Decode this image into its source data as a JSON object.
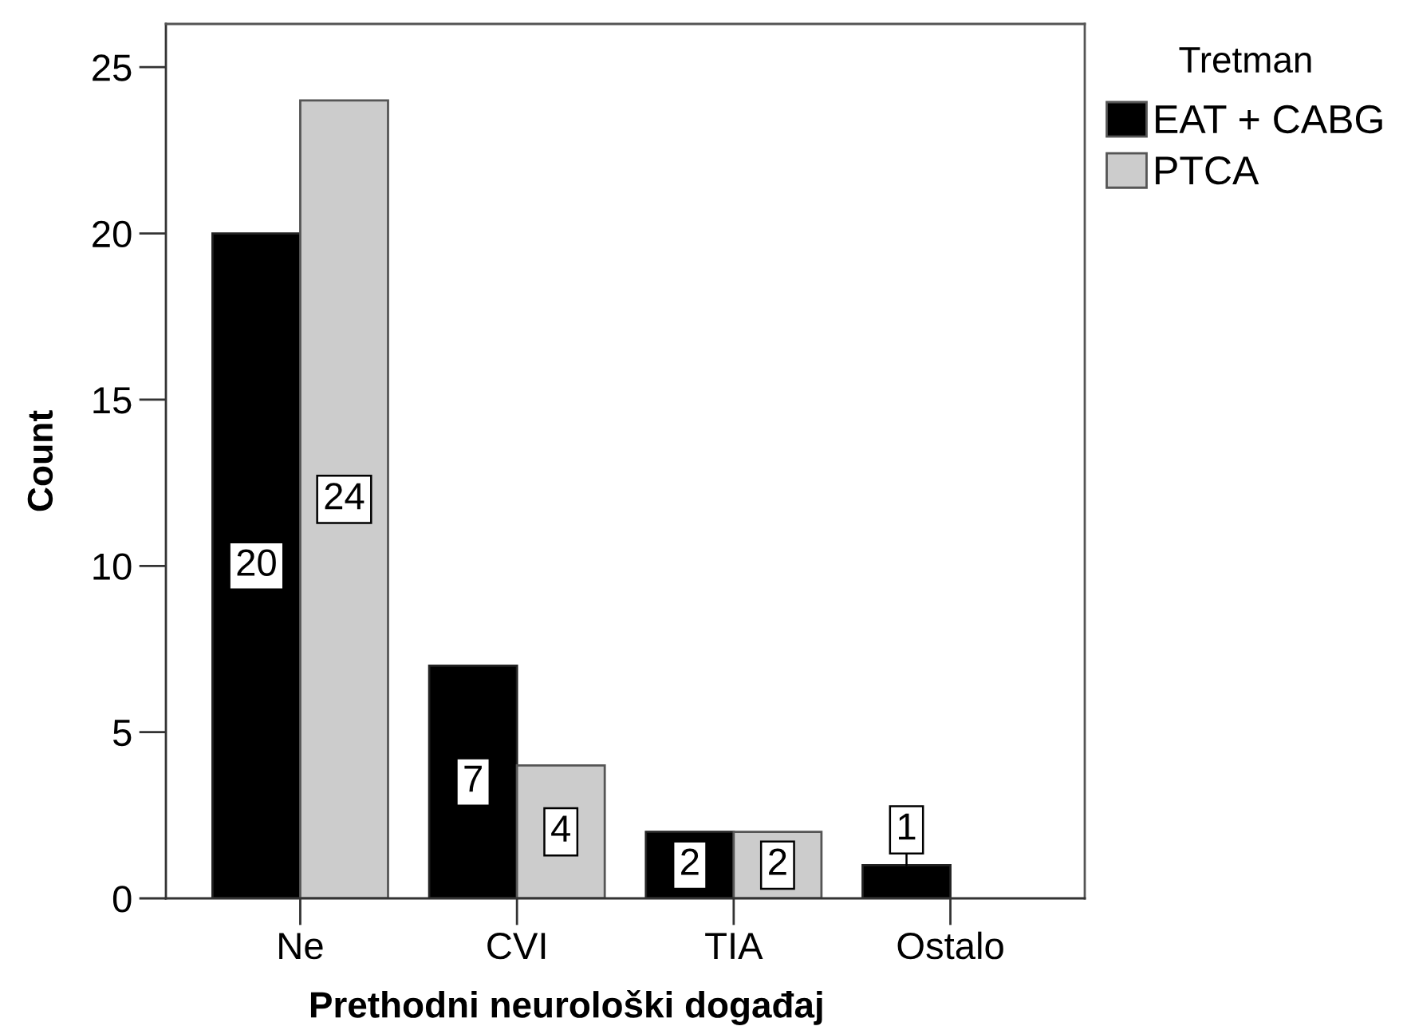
{
  "chart_data": {
    "type": "bar",
    "categories": [
      "Ne",
      "CVI",
      "TIA",
      "Ostalo"
    ],
    "series": [
      {
        "name": "EAT + CABG",
        "color": "#000000",
        "values": [
          20,
          7,
          2,
          1
        ]
      },
      {
        "name": "PTCA",
        "color": "#cccccc",
        "values": [
          24,
          4,
          2,
          null
        ]
      }
    ],
    "xlabel": "Prethodni neurološki događaj",
    "ylabel": "Count",
    "legend_title": "Tretman",
    "ylim": [
      0,
      26.3
    ],
    "yticks": [
      0,
      5,
      10,
      15,
      20,
      25
    ],
    "data_labels": true,
    "legend": "top right"
  }
}
